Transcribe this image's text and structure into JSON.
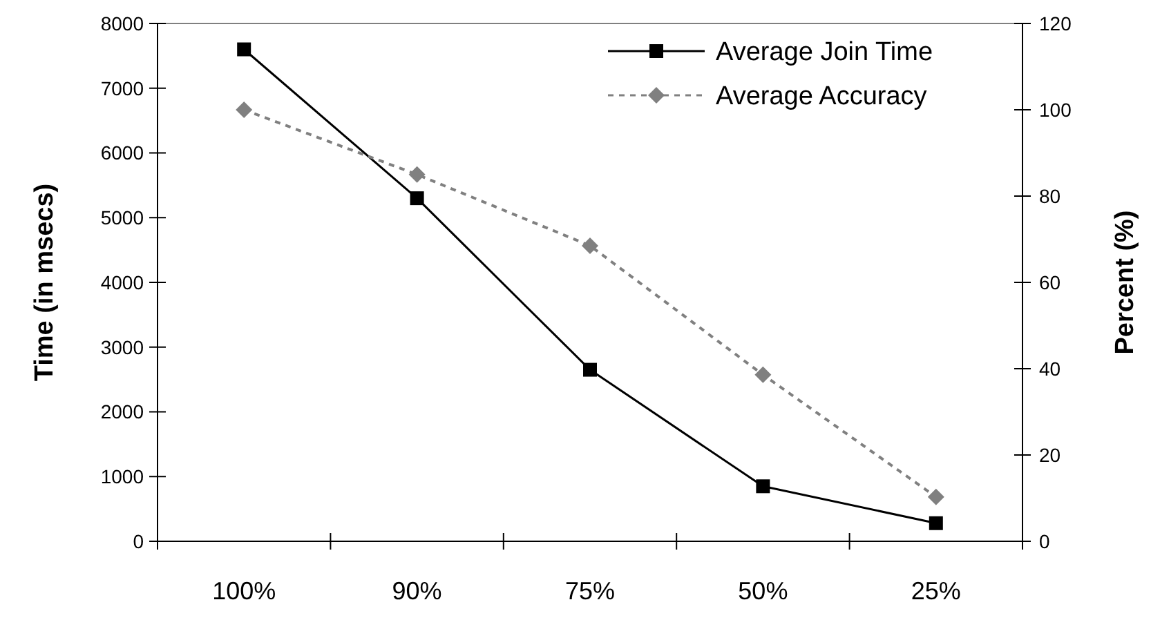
{
  "chart_data": {
    "type": "line",
    "categories": [
      "100%",
      "90%",
      "75%",
      "50%",
      "25%"
    ],
    "ylabel": "Time (in msecs)",
    "y2label": "Percent (%)",
    "ylim": [
      0,
      8000
    ],
    "yticks": [
      0,
      1000,
      2000,
      3000,
      4000,
      5000,
      6000,
      7000,
      8000
    ],
    "y2lim": [
      0,
      120
    ],
    "y2ticks": [
      0,
      20,
      40,
      60,
      80,
      100,
      120
    ],
    "legend": "top right",
    "grid": false,
    "series": [
      {
        "name": "Average Join Time",
        "color": "#000000",
        "values": [
          7600,
          5300,
          2650,
          850,
          280
        ],
        "marker": "square",
        "line_style": "solid"
      },
      {
        "name": "Average Accuracy",
        "color": "#808080",
        "values": [
          100,
          85,
          68.5,
          38.6,
          10.3
        ],
        "marker": "diamond",
        "line_style": "dashed",
        "axis": "y2"
      }
    ]
  }
}
